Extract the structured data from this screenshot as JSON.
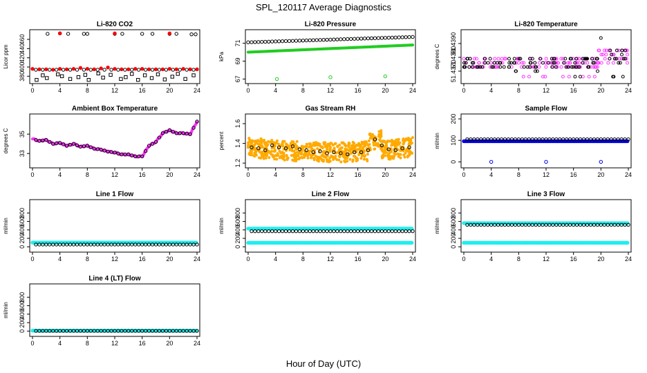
{
  "title": "SPL_120117  Average Diagnostics",
  "xlabel": "Hour of Day (UTC)",
  "colors": {
    "black": "#000000",
    "red": "#ff0000",
    "green": "#22cc22",
    "magenta": "#ff33ff",
    "orange": "#ffaa00",
    "blue": "#0000ee",
    "cyan": "#22eeee"
  },
  "chart_data": [
    {
      "type": "scatter",
      "title": "Li-820 CO2",
      "ylabel": "Licor ppm",
      "xlim": [
        0,
        24
      ],
      "ylim": [
        370,
        475
      ],
      "xticks": [
        0,
        4,
        8,
        12,
        16,
        20,
        24
      ],
      "yticks": [
        380,
        400,
        420,
        440,
        460
      ],
      "series": [
        {
          "color": "red",
          "marker": "filled",
          "x": [
            0,
            1,
            2,
            3,
            4,
            5,
            6,
            7,
            8,
            9,
            10,
            11,
            12,
            13,
            14,
            15,
            16,
            17,
            18,
            19,
            20,
            21,
            22,
            23,
            24
          ],
          "y": [
            396,
            395,
            395,
            394,
            396,
            395,
            396,
            398,
            396,
            395,
            397,
            399,
            396,
            395,
            395,
            396,
            396,
            395,
            395,
            395,
            396,
            395,
            396,
            395,
            395
          ]
        },
        {
          "color": "black",
          "marker": "open",
          "x": [
            0.5,
            1.5,
            2.5,
            3.5,
            4.5,
            5.5,
            6.5,
            7.5,
            8.5,
            9.5,
            10.5,
            11.5,
            12.5,
            13.5,
            14.5,
            15.5,
            16.5,
            17.5,
            18.5,
            19.5,
            20.5,
            21.5,
            22.5,
            23.5
          ],
          "y": [
            394,
            394,
            394,
            394,
            394,
            394,
            394,
            394,
            394,
            394,
            394,
            394,
            394,
            394,
            394,
            394,
            394,
            394,
            394,
            394,
            394,
            394,
            394,
            394
          ]
        },
        {
          "color": "black",
          "marker": "open",
          "x": [
            2.2,
            4,
            5.2,
            7.5,
            8,
            12,
            13.1,
            16,
            17.5,
            20,
            21,
            23.2,
            23.8
          ],
          "y": [
            472,
            473,
            472,
            472,
            472,
            472,
            472,
            472,
            472,
            472,
            472,
            471,
            471
          ]
        },
        {
          "color": "red",
          "marker": "filled",
          "x": [
            4,
            12,
            20
          ],
          "y": [
            473,
            473,
            473
          ]
        },
        {
          "color": "black",
          "marker": "square",
          "x": [
            0.6,
            1.5,
            2.1,
            3.7,
            4.3,
            5.5,
            6.7,
            7.7,
            8.2,
            9.6,
            10.3,
            11.4,
            12.9,
            13.6,
            14.5,
            15.4,
            16.4,
            17.4,
            18.3,
            19.3,
            20.4,
            21.2,
            22.3,
            23.5
          ],
          "y": [
            372,
            382,
            376,
            384,
            380,
            374,
            378,
            383,
            372,
            386,
            377,
            383,
            374,
            378,
            385,
            372,
            382,
            376,
            384,
            373,
            379,
            385,
            374,
            382
          ]
        }
      ]
    },
    {
      "type": "scatter",
      "title": "Li-820 Pressure",
      "ylabel": "kPa",
      "xlim": [
        0,
        24
      ],
      "ylim": [
        66.8,
        72.2
      ],
      "xticks": [
        0,
        4,
        8,
        12,
        16,
        20,
        24
      ],
      "yticks": [
        67,
        69,
        71
      ],
      "series": [
        {
          "color": "black",
          "marker": "open",
          "trend": [
            71.1,
            71.7
          ]
        },
        {
          "color": "green",
          "marker": "filled",
          "trend": [
            70.0,
            70.8
          ]
        },
        {
          "color": "green",
          "marker": "open",
          "x": [
            4.2,
            12,
            20
          ],
          "y": [
            67.0,
            67.2,
            67.3
          ]
        }
      ]
    },
    {
      "type": "scatter",
      "title": "Li-820 Temperature",
      "ylabel": "degrees C",
      "xlim": [
        0,
        24
      ],
      "ylim": [
        51.4363,
        51.4398
      ],
      "xticks": [
        0,
        4,
        8,
        12,
        16,
        20,
        24
      ],
      "yticks": [
        "51.4370",
        "51.4380",
        "51.4390"
      ],
      "yticklabels": [
        "51.4370",
        "51.4380",
        "51.4390"
      ],
      "series": [
        {
          "color": "magenta",
          "marker": "open",
          "note": "quantized scatter"
        },
        {
          "color": "black",
          "marker": "open",
          "note": "quantized scatter"
        }
      ]
    },
    {
      "type": "line",
      "title": "Ambient Box Temperature",
      "ylabel": "degrees C",
      "xlim": [
        0,
        24
      ],
      "ylim": [
        31.8,
        36.8
      ],
      "xticks": [
        0,
        4,
        8,
        12,
        16,
        20,
        24
      ],
      "yticks": [
        33,
        35
      ],
      "series": [
        {
          "color": "magenta",
          "marker": "dense",
          "x": [
            0,
            1,
            2,
            3,
            4,
            5,
            6,
            7,
            8,
            9,
            10,
            11,
            12,
            13,
            14,
            15,
            16,
            17,
            18,
            19,
            20,
            21,
            22,
            23,
            24
          ],
          "y": [
            34.5,
            34.3,
            34.4,
            34.0,
            34.1,
            33.8,
            34.0,
            33.7,
            33.8,
            33.5,
            33.4,
            33.2,
            33.1,
            32.9,
            32.9,
            32.7,
            32.7,
            33.8,
            34.2,
            35.1,
            35.4,
            35.1,
            35.1,
            35.0,
            36.3
          ]
        },
        {
          "color": "black",
          "marker": "open",
          "note": "hourly averages following magenta curve"
        }
      ]
    },
    {
      "type": "scatter",
      "title": "Gas Stream RH",
      "ylabel": "percent",
      "xlim": [
        0,
        24
      ],
      "ylim": [
        1.18,
        1.67
      ],
      "xticks": [
        0,
        4,
        8,
        12,
        16,
        20,
        24
      ],
      "yticks": [
        1.2,
        1.4,
        1.6
      ],
      "series": [
        {
          "color": "orange",
          "marker": "dense",
          "note": "noisy band ~1.25–1.55"
        },
        {
          "color": "black",
          "marker": "open",
          "x": [
            0.5,
            1.5,
            2.5,
            3.5,
            4.5,
            5.5,
            6.5,
            7.5,
            8.5,
            9.5,
            10.5,
            11.5,
            12.5,
            13.5,
            14.5,
            15.5,
            16.5,
            17.5,
            18.5,
            19.5,
            20.5,
            21.5,
            22.5,
            23.5
          ],
          "y": [
            1.36,
            1.35,
            1.33,
            1.38,
            1.36,
            1.35,
            1.37,
            1.34,
            1.33,
            1.31,
            1.32,
            1.3,
            1.31,
            1.3,
            1.29,
            1.31,
            1.31,
            1.33,
            1.44,
            1.38,
            1.34,
            1.33,
            1.35,
            1.36
          ]
        }
      ]
    },
    {
      "type": "scatter",
      "title": "Sample Flow",
      "ylabel": "ml/min",
      "xlim": [
        0,
        24
      ],
      "ylim": [
        -15,
        210
      ],
      "xticks": [
        0,
        4,
        8,
        12,
        16,
        20,
        24
      ],
      "yticks": [
        0,
        100,
        200
      ],
      "series": [
        {
          "color": "blue",
          "marker": "dense",
          "level": 96
        },
        {
          "color": "black",
          "marker": "open",
          "level": 105
        },
        {
          "color": "blue",
          "marker": "open",
          "x": [
            4,
            12,
            20
          ],
          "y": [
            0,
            0,
            0
          ]
        }
      ]
    },
    {
      "type": "scatter",
      "title": "Line 1 Flow",
      "ylabel": "ml/min",
      "xlim": [
        0,
        24
      ],
      "ylim": [
        -60,
        1050
      ],
      "xticks": [
        0,
        4,
        8,
        12,
        16,
        20,
        24
      ],
      "yticks": [
        0,
        200,
        400,
        600,
        800
      ],
      "series": [
        {
          "color": "cyan",
          "marker": "dense",
          "level": 100
        },
        {
          "color": "black",
          "marker": "open",
          "level": 55
        }
      ]
    },
    {
      "type": "scatter",
      "title": "Line 2 Flow",
      "ylabel": "ml/min",
      "xlim": [
        0,
        24
      ],
      "ylim": [
        -60,
        1050
      ],
      "xticks": [
        0,
        4,
        8,
        12,
        16,
        20,
        24
      ],
      "yticks": [
        0,
        200,
        400,
        600,
        800
      ],
      "series": [
        {
          "color": "cyan",
          "marker": "dense",
          "level": 430
        },
        {
          "color": "cyan",
          "marker": "dense",
          "level": 95
        },
        {
          "color": "black",
          "marker": "open",
          "level": 370
        }
      ]
    },
    {
      "type": "scatter",
      "title": "Line 3 Flow",
      "ylabel": "ml/min",
      "xlim": [
        0,
        24
      ],
      "ylim": [
        -60,
        1050
      ],
      "xticks": [
        0,
        4,
        8,
        12,
        16,
        20,
        24
      ],
      "yticks": [
        0,
        200,
        400,
        600,
        800
      ],
      "series": [
        {
          "color": "cyan",
          "marker": "dense",
          "level": 560
        },
        {
          "color": "cyan",
          "marker": "dense",
          "level": 95
        },
        {
          "color": "black",
          "marker": "open",
          "level": 520
        }
      ]
    },
    {
      "type": "scatter",
      "title": "Line 4 (LT) Flow",
      "ylabel": "ml/min",
      "xlim": [
        0,
        24
      ],
      "ylim": [
        -60,
        1050
      ],
      "xticks": [
        0,
        4,
        8,
        12,
        16,
        20,
        24
      ],
      "yticks": [
        0,
        200,
        400,
        600,
        800
      ],
      "series": [
        {
          "color": "cyan",
          "marker": "dense",
          "level": 10
        },
        {
          "color": "black",
          "marker": "open",
          "level": 5
        }
      ]
    }
  ]
}
